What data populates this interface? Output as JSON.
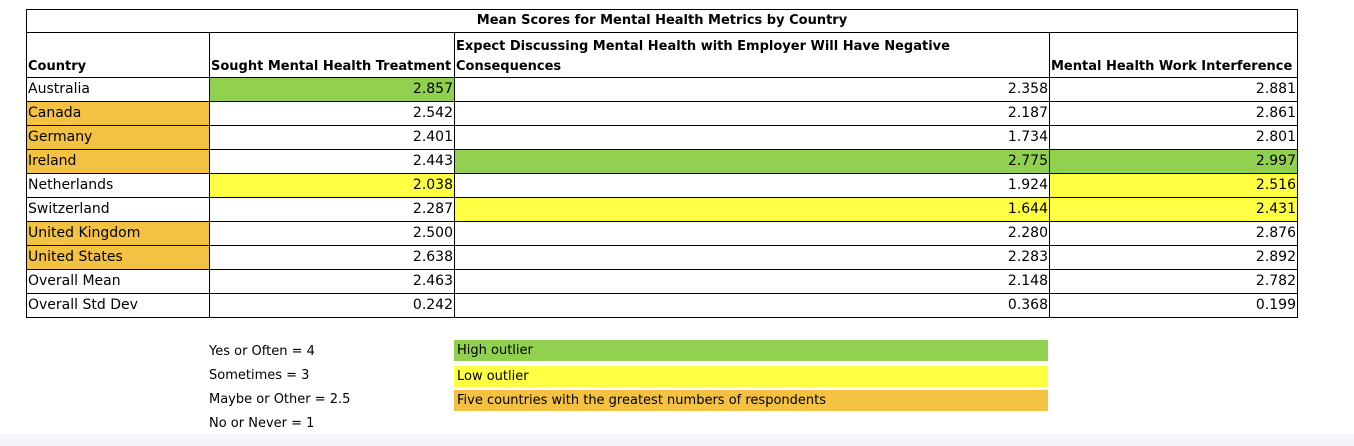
{
  "table": {
    "title": "Mean Scores for Mental Health Metrics by Country",
    "headers": [
      "Country",
      "Sought Mental Health Treatment",
      "Expect Discussing Mental Health with Employer Will Have Negative Consequences",
      "Mental Health Work Interference"
    ],
    "rows": [
      {
        "country": "Australia",
        "values": [
          "2.857",
          "2.358",
          "2.881"
        ],
        "country_hl": "",
        "hl": [
          "green",
          "",
          ""
        ]
      },
      {
        "country": "Canada",
        "values": [
          "2.542",
          "2.187",
          "2.861"
        ],
        "country_hl": "orange",
        "hl": [
          "",
          "",
          ""
        ]
      },
      {
        "country": "Germany",
        "values": [
          "2.401",
          "1.734",
          "2.801"
        ],
        "country_hl": "orange",
        "hl": [
          "",
          "",
          ""
        ]
      },
      {
        "country": "Ireland",
        "values": [
          "2.443",
          "2.775",
          "2.997"
        ],
        "country_hl": "orange",
        "hl": [
          "",
          "green",
          "green"
        ]
      },
      {
        "country": "Netherlands",
        "values": [
          "2.038",
          "1.924",
          "2.516"
        ],
        "country_hl": "",
        "hl": [
          "yellow",
          "",
          "yellow"
        ]
      },
      {
        "country": "Switzerland",
        "values": [
          "2.287",
          "1.644",
          "2.431"
        ],
        "country_hl": "",
        "hl": [
          "",
          "yellow",
          "yellow"
        ]
      },
      {
        "country": "United Kingdom",
        "values": [
          "2.500",
          "2.280",
          "2.876"
        ],
        "country_hl": "orange",
        "hl": [
          "",
          "",
          ""
        ]
      },
      {
        "country": "United States",
        "values": [
          "2.638",
          "2.283",
          "2.892"
        ],
        "country_hl": "orange",
        "hl": [
          "",
          "",
          ""
        ]
      },
      {
        "country": "Overall Mean",
        "values": [
          "2.463",
          "2.148",
          "2.782"
        ],
        "country_hl": "",
        "hl": [
          "",
          "",
          ""
        ]
      },
      {
        "country": "Overall Std Dev",
        "values": [
          "0.242",
          "0.368",
          "0.199"
        ],
        "country_hl": "",
        "hl": [
          "",
          "",
          ""
        ]
      }
    ]
  },
  "legend": {
    "scale": [
      "Yes or Often = 4",
      "Sometimes = 3",
      "Maybe or Other = 2.5",
      "No or Never = 1"
    ],
    "colors": [
      {
        "label": "High outlier",
        "color": "#92d050"
      },
      {
        "label": "Low outlier",
        "color": "#ffff44"
      },
      {
        "label": "Five countries with the greatest numbers of respondents",
        "color": "#f4c242"
      }
    ]
  }
}
